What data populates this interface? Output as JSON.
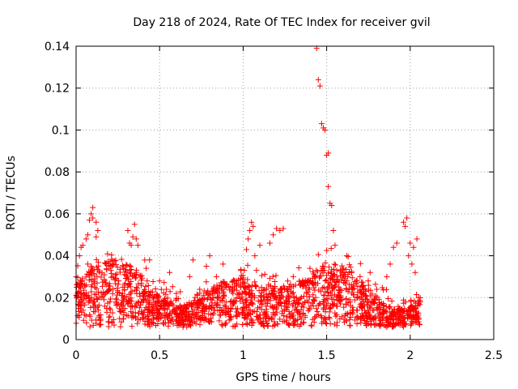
{
  "colors": {
    "points": "#ff0000",
    "grid": "#a0a0a0",
    "axis": "#000000"
  },
  "chart_data": {
    "type": "scatter",
    "title": "Day 218 of 2024, Rate Of TEC Index for receiver gvil",
    "xlabel": "GPS time / hours",
    "ylabel": "ROTI / TECUs",
    "xlim": [
      0,
      2.5
    ],
    "ylim": [
      0,
      0.14
    ],
    "grid": true,
    "x_ticks": [
      0,
      0.5,
      1,
      1.5,
      2,
      2.5
    ],
    "x_tick_labels": [
      "0",
      "0.5",
      "1",
      "1.5",
      "2",
      "2.5"
    ],
    "y_ticks": [
      0,
      0.02,
      0.04,
      0.06,
      0.08,
      0.1,
      0.12,
      0.14
    ],
    "y_tick_labels": [
      "0",
      "0.02",
      "0.04",
      "0.06",
      "0.08",
      "0.1",
      "0.12",
      "0.14"
    ],
    "marker": "+",
    "series": [
      {
        "name": "ROTI",
        "points": [
          [
            0.0,
            0.03
          ],
          [
            0.01,
            0.022
          ],
          [
            0.02,
            0.018
          ],
          [
            0.02,
            0.04
          ],
          [
            0.03,
            0.044
          ],
          [
            0.04,
            0.045
          ],
          [
            0.05,
            0.026
          ],
          [
            0.05,
            0.012
          ],
          [
            0.06,
            0.048
          ],
          [
            0.07,
            0.05
          ],
          [
            0.07,
            0.036
          ],
          [
            0.08,
            0.057
          ],
          [
            0.09,
            0.035
          ],
          [
            0.09,
            0.06
          ],
          [
            0.1,
            0.063
          ],
          [
            0.1,
            0.058
          ],
          [
            0.11,
            0.018
          ],
          [
            0.12,
            0.056
          ],
          [
            0.12,
            0.049
          ],
          [
            0.13,
            0.052
          ],
          [
            0.14,
            0.032
          ],
          [
            0.15,
            0.02
          ],
          [
            0.17,
            0.028
          ],
          [
            0.19,
            0.023
          ],
          [
            0.2,
            0.015
          ],
          [
            0.22,
            0.03
          ],
          [
            0.24,
            0.018
          ],
          [
            0.26,
            0.01
          ],
          [
            0.28,
            0.025
          ],
          [
            0.3,
            0.032
          ],
          [
            0.31,
            0.052
          ],
          [
            0.32,
            0.046
          ],
          [
            0.33,
            0.045
          ],
          [
            0.34,
            0.049
          ],
          [
            0.35,
            0.055
          ],
          [
            0.36,
            0.048
          ],
          [
            0.37,
            0.045
          ],
          [
            0.38,
            0.022
          ],
          [
            0.4,
            0.012
          ],
          [
            0.42,
            0.034
          ],
          [
            0.44,
            0.038
          ],
          [
            0.46,
            0.02
          ],
          [
            0.48,
            0.015
          ],
          [
            0.5,
            0.028
          ],
          [
            0.52,
            0.018
          ],
          [
            0.54,
            0.024
          ],
          [
            0.56,
            0.032
          ],
          [
            0.58,
            0.014
          ],
          [
            0.6,
            0.022
          ],
          [
            0.62,
            0.009
          ],
          [
            0.64,
            0.006
          ],
          [
            0.66,
            0.012
          ],
          [
            0.68,
            0.03
          ],
          [
            0.7,
            0.038
          ],
          [
            0.72,
            0.01
          ],
          [
            0.74,
            0.024
          ],
          [
            0.76,
            0.016
          ],
          [
            0.78,
            0.035
          ],
          [
            0.8,
            0.04
          ],
          [
            0.82,
            0.02
          ],
          [
            0.84,
            0.03
          ],
          [
            0.86,
            0.014
          ],
          [
            0.88,
            0.036
          ],
          [
            0.9,
            0.026
          ],
          [
            0.92,
            0.011
          ],
          [
            0.94,
            0.018
          ],
          [
            0.96,
            0.028
          ],
          [
            0.98,
            0.022
          ],
          [
            1.0,
            0.015
          ],
          [
            1.02,
            0.043
          ],
          [
            1.03,
            0.048
          ],
          [
            1.04,
            0.052
          ],
          [
            1.05,
            0.056
          ],
          [
            1.06,
            0.054
          ],
          [
            1.07,
            0.04
          ],
          [
            1.08,
            0.033
          ],
          [
            1.1,
            0.045
          ],
          [
            1.12,
            0.01
          ],
          [
            1.14,
            0.02
          ],
          [
            1.16,
            0.046
          ],
          [
            1.18,
            0.05
          ],
          [
            1.2,
            0.053
          ],
          [
            1.22,
            0.052
          ],
          [
            1.24,
            0.053
          ],
          [
            1.26,
            0.024
          ],
          [
            1.28,
            0.012
          ],
          [
            1.3,
            0.03
          ],
          [
            1.32,
            0.018
          ],
          [
            1.34,
            0.026
          ],
          [
            1.36,
            0.008
          ],
          [
            1.38,
            0.022
          ],
          [
            1.4,
            0.034
          ],
          [
            1.42,
            0.016
          ],
          [
            1.43,
            0.03
          ],
          [
            1.44,
            0.139
          ],
          [
            1.45,
            0.124
          ],
          [
            1.46,
            0.121
          ],
          [
            1.47,
            0.103
          ],
          [
            1.48,
            0.101
          ],
          [
            1.49,
            0.1
          ],
          [
            1.5,
            0.088
          ],
          [
            1.51,
            0.089
          ],
          [
            1.51,
            0.073
          ],
          [
            1.52,
            0.065
          ],
          [
            1.53,
            0.064
          ],
          [
            1.54,
            0.052
          ],
          [
            1.55,
            0.045
          ],
          [
            1.56,
            0.03
          ],
          [
            1.58,
            0.02
          ],
          [
            1.6,
            0.034
          ],
          [
            1.62,
            0.04
          ],
          [
            1.64,
            0.018
          ],
          [
            1.66,
            0.026
          ],
          [
            1.68,
            0.014
          ],
          [
            1.7,
            0.03
          ],
          [
            1.72,
            0.022
          ],
          [
            1.74,
            0.01
          ],
          [
            1.76,
            0.032
          ],
          [
            1.78,
            0.018
          ],
          [
            1.8,
            0.024
          ],
          [
            1.82,
            0.009
          ],
          [
            1.84,
            0.016
          ],
          [
            1.86,
            0.03
          ],
          [
            1.88,
            0.036
          ],
          [
            1.9,
            0.044
          ],
          [
            1.92,
            0.046
          ],
          [
            1.94,
            0.012
          ],
          [
            1.96,
            0.056
          ],
          [
            1.97,
            0.054
          ],
          [
            1.98,
            0.058
          ],
          [
            1.99,
            0.04
          ],
          [
            2.0,
            0.046
          ],
          [
            2.01,
            0.036
          ],
          [
            2.02,
            0.044
          ],
          [
            2.03,
            0.032
          ],
          [
            2.04,
            0.048
          ],
          [
            2.05,
            0.02
          ],
          [
            2.06,
            0.018
          ]
        ]
      }
    ],
    "cloud_note_baseline": "dense band of points between 0.005 and 0.04 across 0 to 2.06 hours"
  }
}
